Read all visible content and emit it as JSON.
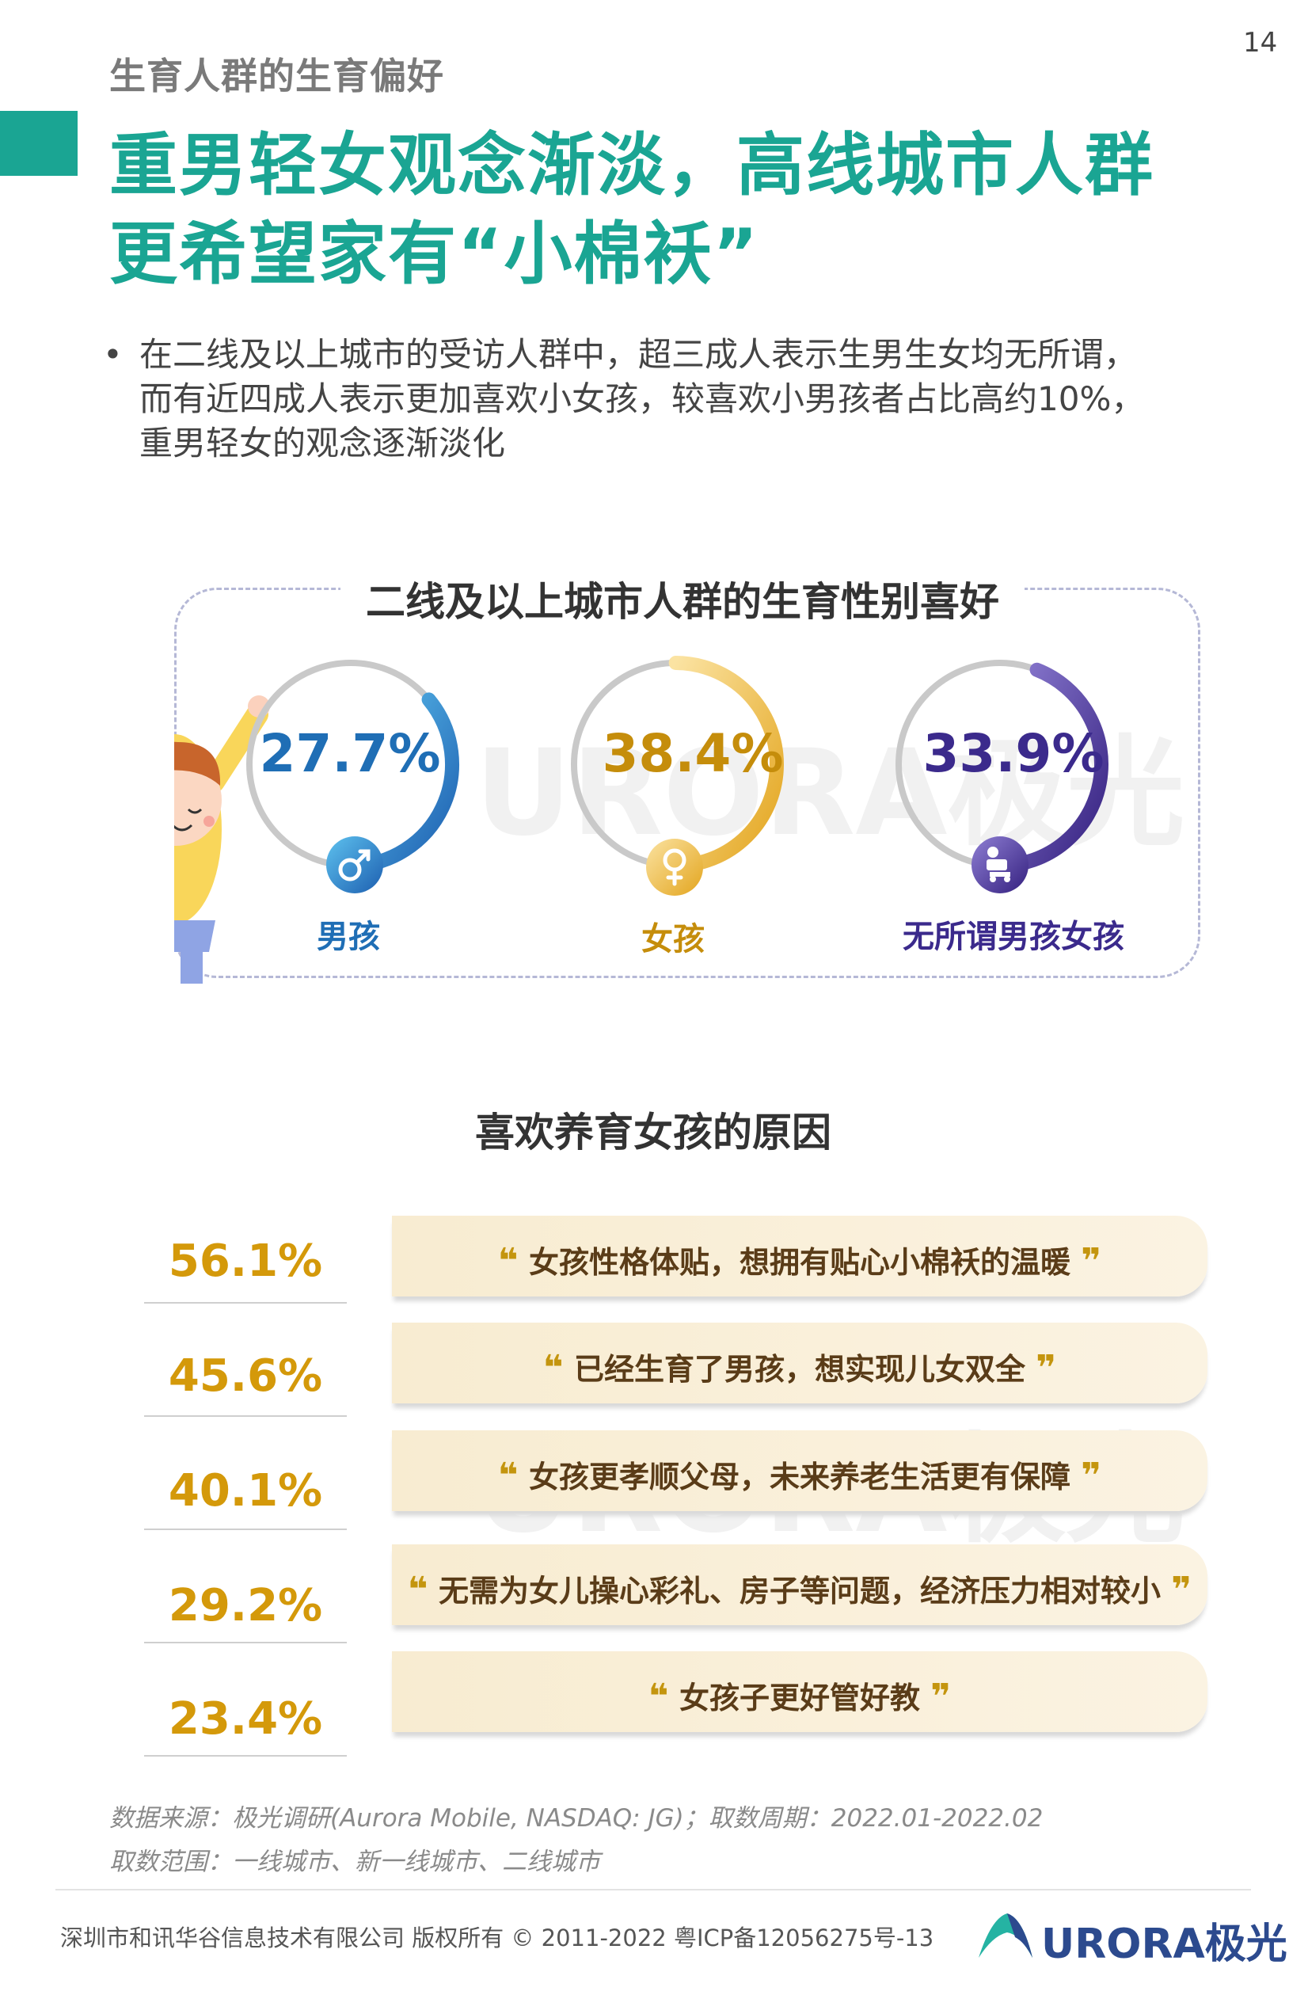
{
  "page": {
    "number": "14",
    "section_label": "生育人群的生育偏好",
    "title_line_1": "重男轻女观念渐淡，高线城市人群",
    "title_line_2": "更希望家有“小棉袄”",
    "bullet_lines": [
      "在二线及以上城市的受访人群中，超三成人表示生男生女均无所谓，",
      "而有近四成人表示更加喜欢小女孩，较喜欢小男孩者占比高约10%，",
      "重男轻女的观念逐渐淡化"
    ]
  },
  "chart_data": [
    {
      "type": "pie",
      "title": "二线及以上城市人群的生育性别喜好",
      "categories": [
        "男孩",
        "女孩",
        "无所谓男孩女孩"
      ],
      "values": [
        27.7,
        38.4,
        33.9
      ],
      "value_labels": [
        "27.7%",
        "38.4%",
        "33.9%"
      ],
      "unit": "%",
      "colors": [
        "#1f6eb5",
        "#e8b32a",
        "#3b2a8c"
      ]
    },
    {
      "type": "table",
      "title": "喜欢养育女孩的原因",
      "categories": [
        "女孩性格体贴，想拥有贴心小棉袄的温暖",
        "已经生育了男孩，想实现儿女双全",
        "女孩更孝顺父母，未来养老生活更有保障",
        "无需为女儿操心彩礼、房子等问题，经济压力相对较小",
        "女孩子更好管好教"
      ],
      "values": [
        56.1,
        45.6,
        40.1,
        29.2,
        23.4
      ],
      "value_labels": [
        "56.1%",
        "45.6%",
        "40.1%",
        "29.2%",
        "23.4%"
      ],
      "unit": "%"
    }
  ],
  "quote_marks": {
    "open": "❝",
    "close": "❞"
  },
  "footer": {
    "source_line_1": "数据来源：极光调研(Aurora Mobile, NASDAQ: JG)；取数周期：2022.01-2022.02",
    "source_line_2": "取数范围：一线城市、新一线城市、二线城市",
    "copyright": "深圳市和讯华谷信息技术有限公司 版权所有 © 2011-2022 粤ICP备12056275号-13",
    "brand": "URORA极光",
    "watermark": "URORA极光"
  },
  "icons": [
    "male-symbol-icon",
    "female-symbol-icon",
    "either-gender-icon",
    "aurora-logo-icon",
    "child-illustration"
  ]
}
